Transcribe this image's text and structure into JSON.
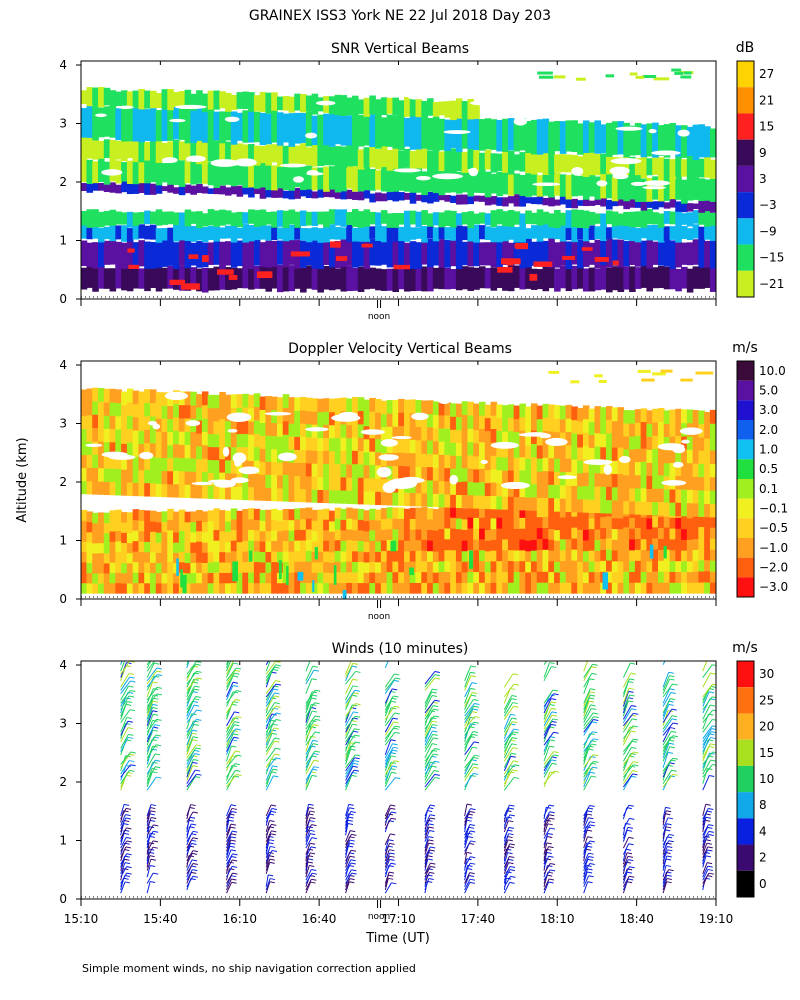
{
  "header": {
    "title": "GRAINEX ISS3 York NE  22 Jul 2018 Day 203",
    "shared_ylabel": "Altitude (km)",
    "footer_note": "Simple moment winds, no ship navigation correction applied"
  },
  "chart_data": [
    {
      "type": "heatmap",
      "title": "SNR Vertical Beams",
      "ylabel": "Altitude (km)",
      "ylim": [
        0,
        4
      ],
      "yticks": [
        0,
        1,
        2,
        3,
        4
      ],
      "xlim": [
        "15:10",
        "19:10"
      ],
      "marker_label": "noon",
      "colorbar": {
        "unit": "dB",
        "labels": [
          "27",
          "21",
          "15",
          "9",
          "3",
          "−3",
          "−9",
          "−15",
          "−21"
        ],
        "colors": [
          "#ffd300",
          "#ff9000",
          "#ff2020",
          "#3a0a5a",
          "#5a10a0",
          "#0a2ad8",
          "#10b8f0",
          "#20e060",
          "#c8f020"
        ]
      },
      "layers": [
        {
          "altitude_km": [
            0.15,
            0.55
          ],
          "value_db": 7,
          "description_level": "lowest"
        },
        {
          "altitude_km": [
            0.55,
            1.0
          ],
          "value_db": 0
        },
        {
          "altitude_km": [
            1.0,
            1.25
          ],
          "value_db": -8
        },
        {
          "altitude_km": [
            1.25,
            1.5
          ],
          "value_db": -14
        },
        {
          "altitude_km": [
            1.85,
            2.0
          ],
          "value_db": 1
        },
        {
          "altitude_km": [
            2.0,
            2.4
          ],
          "value_db": -16
        },
        {
          "altitude_km": [
            2.4,
            2.75
          ],
          "value_db": -19
        },
        {
          "altitude_km": [
            2.75,
            3.3
          ],
          "value_db": -12
        },
        {
          "altitude_km": [
            3.3,
            3.6
          ],
          "value_db": -18
        }
      ]
    },
    {
      "type": "heatmap",
      "title": "Doppler Velocity Vertical Beams",
      "ylabel": "Altitude (km)",
      "ylim": [
        0,
        4
      ],
      "yticks": [
        0,
        1,
        2,
        3,
        4
      ],
      "xlim": [
        "15:10",
        "19:10"
      ],
      "marker_label": "noon",
      "colorbar": {
        "unit": "m/s",
        "labels": [
          "10.0",
          "5.0",
          "3.0",
          "2.0",
          "1.0",
          "0.5",
          "0.1",
          "−0.1",
          "−0.5",
          "−1.0",
          "−2.0",
          "−3.0"
        ],
        "colors": [
          "#3a0a3a",
          "#5a10a0",
          "#2010d0",
          "#1060f0",
          "#10c0f0",
          "#20e040",
          "#a0f020",
          "#f0f020",
          "#ffd020",
          "#ffa020",
          "#ff6010",
          "#ff1010"
        ]
      },
      "layers": [
        {
          "altitude_km": [
            0.1,
            1.5
          ],
          "value_ms": -0.5
        },
        {
          "altitude_km": [
            1.8,
            3.6
          ],
          "value_ms": -0.3
        }
      ]
    },
    {
      "type": "scatter",
      "title": "Winds (10 minutes)",
      "ylabel": "Altitude (km)",
      "xlabel": "Time (UT)",
      "ylim": [
        0,
        4
      ],
      "yticks": [
        0,
        1,
        2,
        3,
        4
      ],
      "xticks": [
        "15:10",
        "15:40",
        "16:10",
        "16:40",
        "17:10",
        "17:40",
        "18:10",
        "18:40",
        "19:10"
      ],
      "marker_label": "noon",
      "colorbar": {
        "unit": "m/s",
        "labels": [
          "30",
          "25",
          "20",
          "15",
          "10",
          "8",
          "4",
          "2",
          "0"
        ],
        "colors": [
          "#ff1010",
          "#ff7010",
          "#ffb020",
          "#a8e020",
          "#20d060",
          "#10a8e8",
          "#0a20e0",
          "#3a0a70",
          "#000000"
        ]
      },
      "profiles_minutes": [
        15,
        25,
        40,
        55,
        70,
        85,
        100,
        115,
        130,
        145,
        160,
        175,
        190,
        205,
        220,
        235
      ],
      "wind_speed_low_ms": 5,
      "wind_speed_high_ms": 12
    }
  ]
}
